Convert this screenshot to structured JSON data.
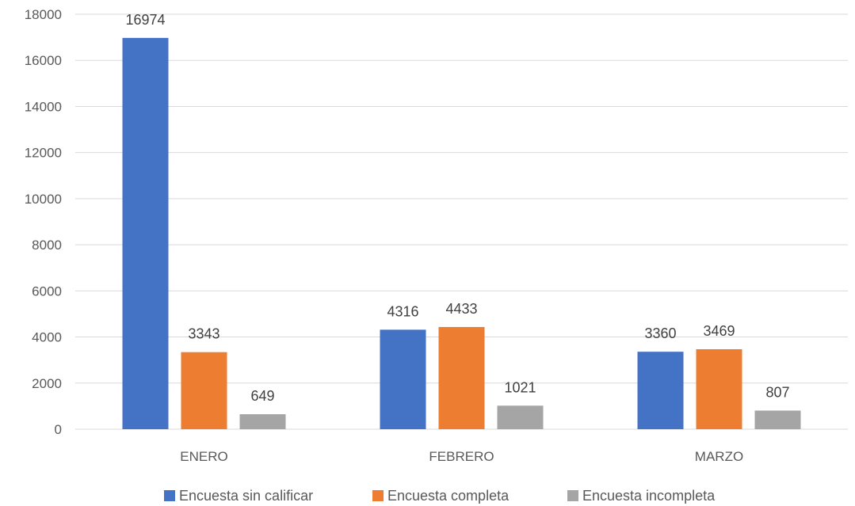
{
  "chart_data": {
    "type": "bar",
    "title": "",
    "xlabel": "",
    "ylabel": "",
    "categories": [
      "ENERO",
      "FEBRERO",
      "MARZO"
    ],
    "ylim": [
      0,
      18000
    ],
    "yticks": [
      0,
      2000,
      4000,
      6000,
      8000,
      10000,
      12000,
      14000,
      16000,
      18000
    ],
    "grid": true,
    "legend_position": "bottom",
    "data_labels": true,
    "series": [
      {
        "name": "Encuesta sin calificar",
        "color": "#4472c4",
        "values": [
          16974,
          4316,
          3360
        ]
      },
      {
        "name": "Encuesta completa",
        "color": "#ed7d31",
        "values": [
          3343,
          4433,
          3469
        ]
      },
      {
        "name": "Encuesta incompleta",
        "color": "#a5a5a5",
        "values": [
          649,
          1021,
          807
        ]
      }
    ]
  }
}
